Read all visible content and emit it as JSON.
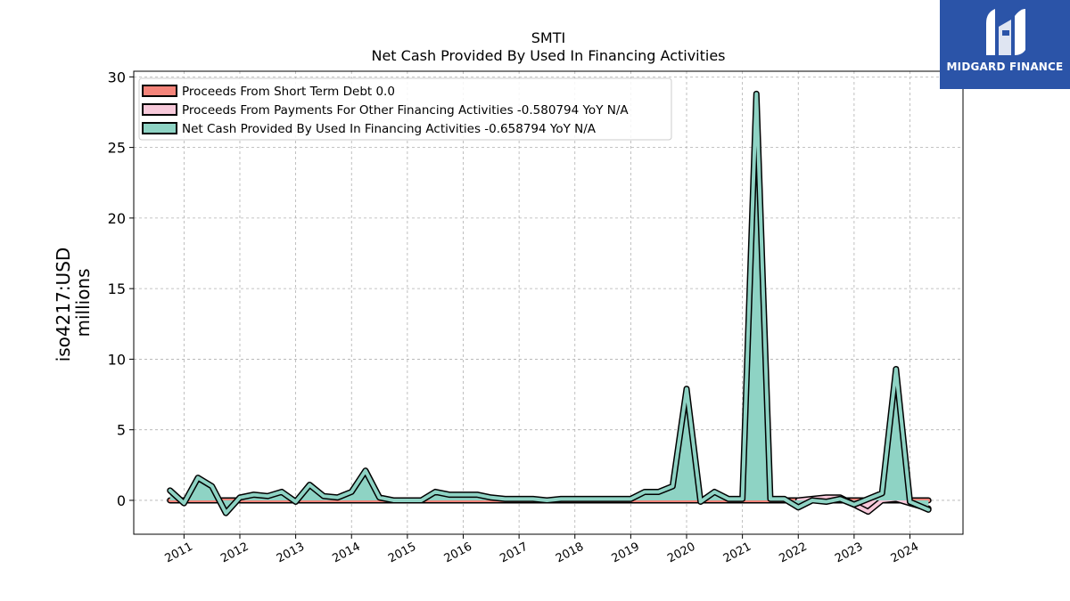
{
  "chart_data": {
    "type": "area",
    "title": "SMTI",
    "subtitle": "Net Cash Provided By Used In Financing Activities",
    "ylabel": "iso4217:USD",
    "ylabel2": "millions",
    "xlabel": "",
    "ylim": [
      -2.4,
      30.4
    ],
    "xlim": [
      2010.1,
      2024.95
    ],
    "yticks": [
      0,
      5,
      10,
      15,
      20,
      25,
      30
    ],
    "xticks": [
      2011,
      2012,
      2013,
      2014,
      2015,
      2016,
      2017,
      2018,
      2019,
      2020,
      2021,
      2022,
      2023,
      2024
    ],
    "grid": true,
    "legend_position": "top-left",
    "colors": {
      "short_term_debt": "#f4847a",
      "other_financing": "#f7c9da",
      "net_financing": "#8ed3c4",
      "outline": "#000000",
      "grid": "#b0b0b0"
    },
    "series": [
      {
        "name": "Proceeds From Short Term Debt  0.0",
        "key": "short_term_debt",
        "x": [
          2010.75,
          2024.33
        ],
        "values": [
          0,
          0
        ]
      },
      {
        "name": "Proceeds From Payments For Other Financing Activities  -0.580794 YoY N/A",
        "key": "other_financing",
        "x": [
          2022.0,
          2022.25,
          2022.5,
          2022.75,
          2023.0,
          2023.25,
          2023.5,
          2023.75,
          2024.0,
          2024.33
        ],
        "values": [
          0.0,
          0.1,
          0.2,
          0.2,
          -0.3,
          -0.8,
          0.0,
          0.1,
          -0.2,
          -0.58
        ]
      },
      {
        "name": "Net Cash Provided By Used In Financing Activities  -0.658794 YoY N/A",
        "key": "net_financing",
        "x": [
          2010.75,
          2011.0,
          2011.25,
          2011.5,
          2011.75,
          2012.0,
          2012.25,
          2012.5,
          2012.75,
          2013.0,
          2013.25,
          2013.5,
          2013.75,
          2014.0,
          2014.25,
          2014.5,
          2014.75,
          2015.0,
          2015.25,
          2015.5,
          2015.75,
          2016.0,
          2016.25,
          2016.5,
          2016.75,
          2017.0,
          2017.25,
          2017.5,
          2017.75,
          2018.0,
          2018.25,
          2018.5,
          2018.75,
          2019.0,
          2019.25,
          2019.5,
          2019.75,
          2020.0,
          2020.25,
          2020.5,
          2020.75,
          2021.0,
          2021.25,
          2021.5,
          2021.75,
          2022.0,
          2022.25,
          2022.5,
          2022.75,
          2023.0,
          2023.25,
          2023.5,
          2023.75,
          2024.0,
          2024.33
        ],
        "values": [
          0.7,
          -0.2,
          1.6,
          1.0,
          -0.9,
          0.2,
          0.4,
          0.3,
          0.6,
          -0.1,
          1.1,
          0.3,
          0.2,
          0.6,
          2.1,
          0.2,
          0.0,
          0.0,
          0.0,
          0.6,
          0.4,
          0.4,
          0.4,
          0.2,
          0.1,
          0.1,
          0.1,
          0.0,
          0.1,
          0.1,
          0.1,
          0.1,
          0.1,
          0.1,
          0.6,
          0.6,
          1.0,
          7.9,
          -0.1,
          0.6,
          0.1,
          0.1,
          28.8,
          0.1,
          0.1,
          -0.5,
          0.0,
          -0.1,
          0.1,
          -0.3,
          0.1,
          0.5,
          9.3,
          -0.1,
          -0.66
        ]
      }
    ]
  },
  "logo": {
    "text": "MIDGARD FINANCE"
  }
}
